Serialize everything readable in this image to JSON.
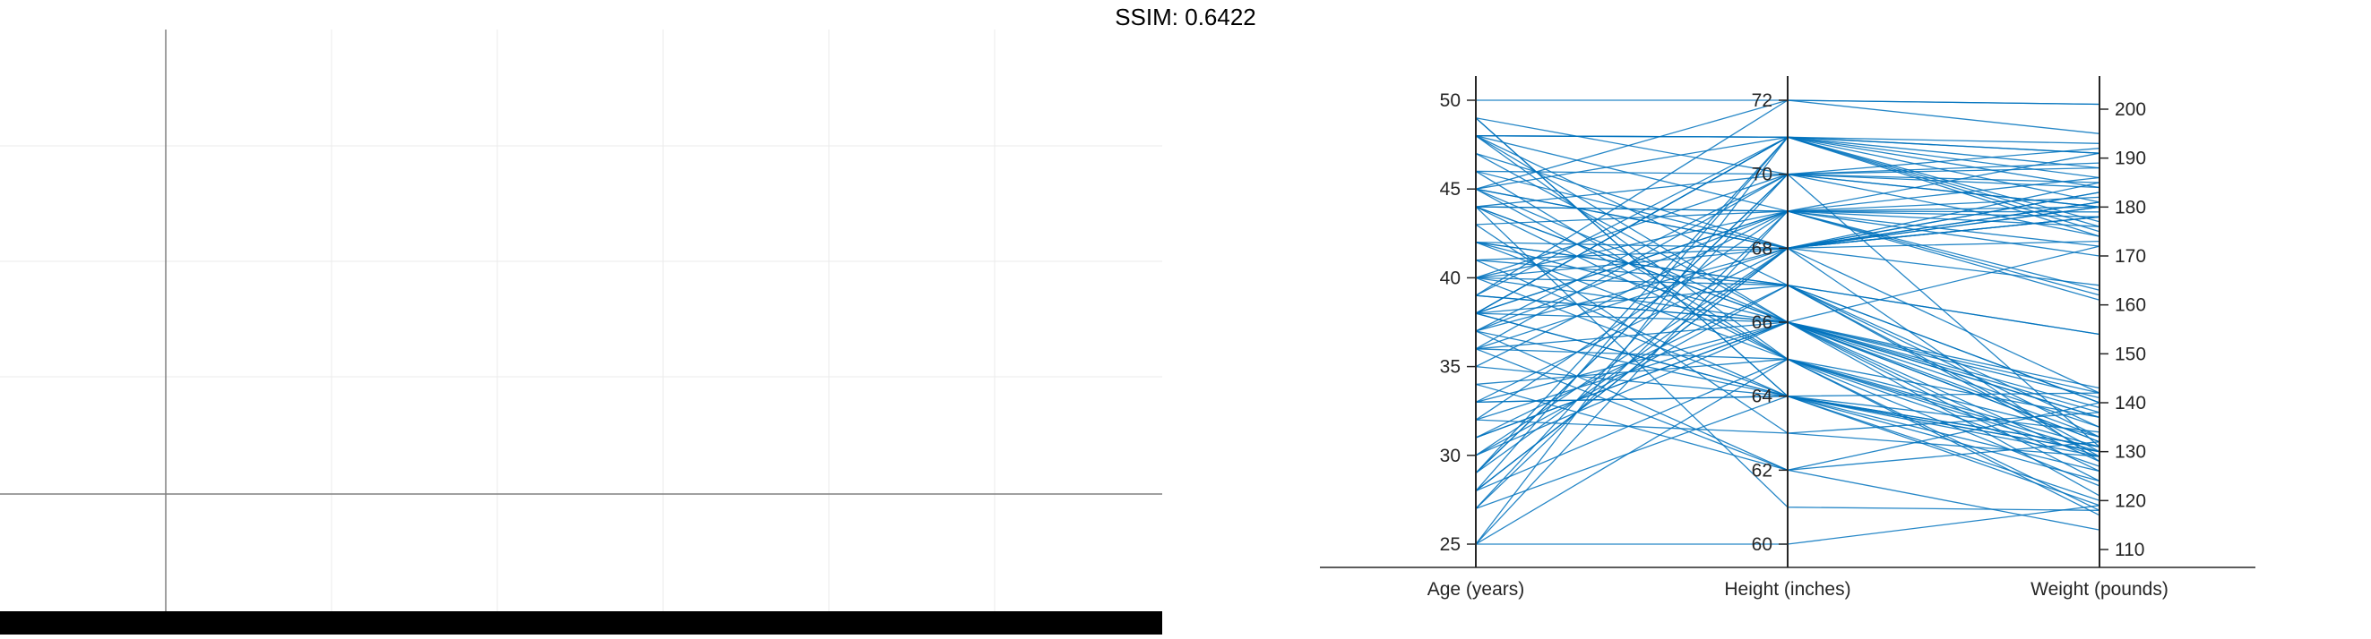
{
  "title": "SSIM: 0.6422",
  "colors": {
    "line": "#0072bd",
    "axis": "#262626",
    "grid": "#ebebeb",
    "left_axis": "#808080",
    "bar": "#000000"
  },
  "chart_data": {
    "type": "parallel-coordinates",
    "axes": [
      {
        "label": "Age (years)",
        "range": [
          25,
          50
        ],
        "ticks": [
          "25",
          "30",
          "35",
          "40",
          "45",
          "50"
        ],
        "tick_values": [
          25,
          30,
          35,
          40,
          45,
          50
        ],
        "tick_side": "left"
      },
      {
        "label": "Height (inches)",
        "range": [
          60,
          72
        ],
        "ticks": [
          "60",
          "62",
          "64",
          "66",
          "68",
          "70",
          "72"
        ],
        "tick_values": [
          60,
          62,
          64,
          66,
          68,
          70,
          72
        ],
        "tick_side": "left"
      },
      {
        "label": "Weight (pounds)",
        "range": [
          110,
          200
        ],
        "ticks": [
          "110",
          "120",
          "130",
          "140",
          "150",
          "160",
          "170",
          "180",
          "190",
          "200"
        ],
        "tick_values": [
          110,
          120,
          130,
          140,
          150,
          160,
          170,
          180,
          190,
          200
        ],
        "tick_side": "right"
      }
    ],
    "records": [
      [
        38,
        71,
        176
      ],
      [
        43,
        69,
        163
      ],
      [
        38,
        64,
        131
      ],
      [
        40,
        67,
        133
      ],
      [
        49,
        64,
        119
      ],
      [
        46,
        68,
        142
      ],
      [
        33,
        64,
        142
      ],
      [
        40,
        68,
        180
      ],
      [
        28,
        68,
        183
      ],
      [
        31,
        66,
        132
      ],
      [
        45,
        68,
        128
      ],
      [
        42,
        66,
        137
      ],
      [
        25,
        71,
        174
      ],
      [
        39,
        72,
        201
      ],
      [
        36,
        65,
        129
      ],
      [
        48,
        71,
        181
      ],
      [
        32,
        69,
        191
      ],
      [
        27,
        70,
        131
      ],
      [
        37,
        62,
        140
      ],
      [
        50,
        72,
        201
      ],
      [
        48,
        65,
        117
      ],
      [
        44,
        65,
        118
      ],
      [
        44,
        61,
        118
      ],
      [
        30,
        66,
        135
      ],
      [
        25,
        65,
        130
      ],
      [
        48,
        71,
        191
      ],
      [
        35,
        69,
        179
      ],
      [
        44,
        66,
        139
      ],
      [
        39,
        66,
        172
      ],
      [
        45,
        66,
        121
      ],
      [
        46,
        65,
        123
      ],
      [
        29,
        71,
        193
      ],
      [
        33,
        66,
        128
      ],
      [
        47,
        66,
        142
      ],
      [
        28,
        71,
        177
      ],
      [
        40,
        69,
        178
      ],
      [
        28,
        68,
        181
      ],
      [
        41,
        67,
        129
      ],
      [
        38,
        69,
        162
      ],
      [
        38,
        67,
        154
      ],
      [
        36,
        66,
        137
      ],
      [
        45,
        65,
        127
      ],
      [
        36,
        68,
        180
      ],
      [
        30,
        68,
        178
      ],
      [
        41,
        68,
        185
      ],
      [
        37,
        70,
        174
      ],
      [
        29,
        68,
        173
      ],
      [
        48,
        67,
        130
      ],
      [
        47,
        68,
        183
      ],
      [
        39,
        66,
        138
      ],
      [
        42,
        67,
        140
      ],
      [
        32,
        66,
        141
      ],
      [
        49,
        64,
        124
      ],
      [
        43,
        63,
        138
      ],
      [
        45,
        71,
        175
      ],
      [
        40,
        70,
        185
      ],
      [
        29,
        70,
        188
      ],
      [
        30,
        67,
        135
      ],
      [
        40,
        66,
        124
      ],
      [
        27,
        64,
        130
      ],
      [
        45,
        72,
        195
      ],
      [
        35,
        64,
        120
      ],
      [
        34,
        62,
        114
      ],
      [
        44,
        70,
        184
      ],
      [
        37,
        64,
        129
      ],
      [
        46,
        70,
        180
      ],
      [
        39,
        71,
        191
      ],
      [
        33,
        68,
        181
      ],
      [
        28,
        65,
        137
      ],
      [
        32,
        63,
        129
      ],
      [
        41,
        64,
        130
      ],
      [
        38,
        69,
        170
      ],
      [
        42,
        68,
        164
      ],
      [
        37,
        68,
        178
      ],
      [
        38,
        66,
        132
      ],
      [
        37,
        69,
        182
      ],
      [
        31,
        67,
        140
      ],
      [
        49,
        70,
        180
      ],
      [
        42,
        65,
        133
      ],
      [
        44,
        69,
        161
      ],
      [
        40,
        64,
        131
      ],
      [
        44,
        69,
        176
      ],
      [
        45,
        68,
        178
      ],
      [
        38,
        71,
        186
      ],
      [
        33,
        64,
        126
      ],
      [
        34,
        65,
        131
      ],
      [
        25,
        60,
        119
      ],
      [
        44,
        66,
        126
      ],
      [
        48,
        69,
        180
      ],
      [
        27,
        69,
        172
      ],
      [
        25,
        69,
        186
      ],
      [
        31,
        66,
        133
      ],
      [
        48,
        71,
        188
      ],
      [
        36,
        70,
        189
      ],
      [
        29,
        70,
        192
      ],
      [
        48,
        66,
        143
      ],
      [
        38,
        71,
        184
      ],
      [
        36,
        62,
        132
      ],
      [
        38,
        64,
        134
      ],
      [
        42,
        67,
        154
      ]
    ]
  }
}
